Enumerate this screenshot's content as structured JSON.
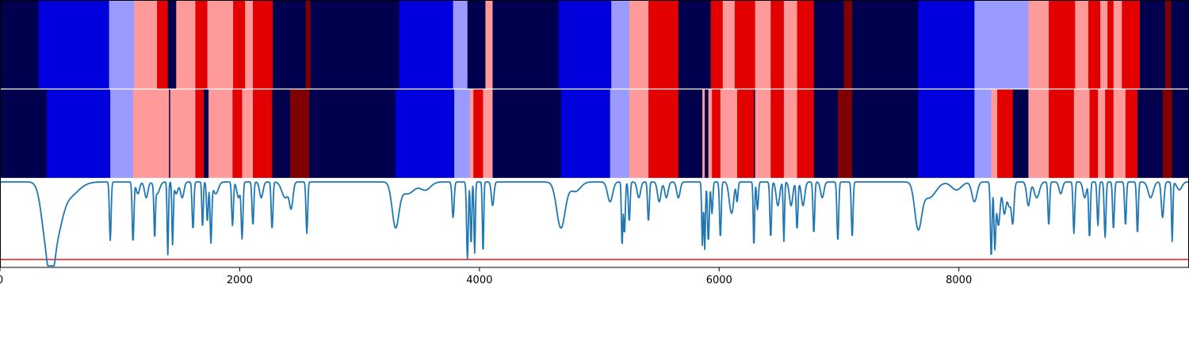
{
  "chart_data": {
    "type": "heatmap",
    "xlim": [
      0,
      9920
    ],
    "x_ticks": [
      0,
      2000,
      4000,
      6000,
      8000
    ],
    "x_tick_labels": [
      "0",
      "2000",
      "4000",
      "6000",
      "8000"
    ],
    "state_colors": {
      "0": "#00004f",
      "1": "#0000dd",
      "2": "#9a9aff",
      "3": "#ff9a9a",
      "4": "#e30000",
      "5": "#7e0000"
    },
    "tracks": [
      {
        "segments": [
          [
            0,
            320,
            0
          ],
          [
            320,
            910,
            1
          ],
          [
            910,
            1120,
            2
          ],
          [
            1120,
            1310,
            3
          ],
          [
            1310,
            1400,
            4
          ],
          [
            1400,
            1470,
            0
          ],
          [
            1470,
            1630,
            3
          ],
          [
            1630,
            1730,
            4
          ],
          [
            1730,
            1945,
            3
          ],
          [
            1945,
            2045,
            4
          ],
          [
            2045,
            2110,
            3
          ],
          [
            2110,
            2275,
            4
          ],
          [
            2275,
            2550,
            0
          ],
          [
            2550,
            2590,
            5
          ],
          [
            2590,
            3330,
            0
          ],
          [
            3330,
            3780,
            1
          ],
          [
            3780,
            3900,
            2
          ],
          [
            3900,
            4050,
            0
          ],
          [
            4050,
            4110,
            3
          ],
          [
            4110,
            4660,
            0
          ],
          [
            4660,
            5100,
            1
          ],
          [
            5100,
            5250,
            2
          ],
          [
            5250,
            5410,
            3
          ],
          [
            5410,
            5660,
            4
          ],
          [
            5660,
            5930,
            0
          ],
          [
            5930,
            6030,
            4
          ],
          [
            6030,
            6130,
            3
          ],
          [
            6130,
            6300,
            4
          ],
          [
            6300,
            6430,
            3
          ],
          [
            6430,
            6540,
            4
          ],
          [
            6540,
            6650,
            3
          ],
          [
            6650,
            6790,
            4
          ],
          [
            6790,
            7040,
            0
          ],
          [
            7040,
            7110,
            5
          ],
          [
            7110,
            7660,
            0
          ],
          [
            7660,
            8130,
            1
          ],
          [
            8130,
            8580,
            2
          ],
          [
            8580,
            8750,
            3
          ],
          [
            8750,
            8970,
            4
          ],
          [
            8970,
            9080,
            3
          ],
          [
            9080,
            9180,
            4
          ],
          [
            9180,
            9240,
            3
          ],
          [
            9240,
            9290,
            4
          ],
          [
            9290,
            9360,
            3
          ],
          [
            9360,
            9510,
            4
          ],
          [
            9510,
            9720,
            0
          ],
          [
            9720,
            9770,
            5
          ],
          [
            9770,
            9920,
            0
          ]
        ]
      },
      {
        "segments": [
          [
            0,
            390,
            0
          ],
          [
            390,
            920,
            1
          ],
          [
            920,
            1110,
            2
          ],
          [
            1110,
            1410,
            3
          ],
          [
            1410,
            1420,
            0
          ],
          [
            1420,
            1470,
            3
          ],
          [
            1470,
            1630,
            3
          ],
          [
            1630,
            1700,
            4
          ],
          [
            1700,
            1740,
            0
          ],
          [
            1740,
            1940,
            3
          ],
          [
            1940,
            2020,
            4
          ],
          [
            2020,
            2110,
            3
          ],
          [
            2110,
            2270,
            4
          ],
          [
            2270,
            2420,
            0
          ],
          [
            2420,
            2580,
            5
          ],
          [
            2580,
            3300,
            0
          ],
          [
            3300,
            3790,
            1
          ],
          [
            3790,
            3920,
            2
          ],
          [
            3920,
            3950,
            3
          ],
          [
            3950,
            4030,
            4
          ],
          [
            4030,
            4110,
            3
          ],
          [
            4110,
            4680,
            0
          ],
          [
            4680,
            5090,
            1
          ],
          [
            5090,
            5250,
            2
          ],
          [
            5250,
            5410,
            3
          ],
          [
            5410,
            5660,
            4
          ],
          [
            5660,
            5860,
            0
          ],
          [
            5860,
            5880,
            3
          ],
          [
            5880,
            5910,
            0
          ],
          [
            5910,
            5940,
            3
          ],
          [
            5940,
            6010,
            4
          ],
          [
            6010,
            6150,
            3
          ],
          [
            6150,
            6290,
            4
          ],
          [
            6290,
            6300,
            0
          ],
          [
            6300,
            6430,
            3
          ],
          [
            6430,
            6540,
            4
          ],
          [
            6540,
            6650,
            3
          ],
          [
            6650,
            6790,
            4
          ],
          [
            6790,
            6990,
            0
          ],
          [
            6990,
            7110,
            5
          ],
          [
            7110,
            7660,
            0
          ],
          [
            7660,
            8130,
            1
          ],
          [
            8130,
            8270,
            2
          ],
          [
            8270,
            8320,
            3
          ],
          [
            8320,
            8450,
            4
          ],
          [
            8450,
            8580,
            0
          ],
          [
            8580,
            8750,
            3
          ],
          [
            8750,
            8960,
            4
          ],
          [
            8960,
            9090,
            3
          ],
          [
            9090,
            9160,
            4
          ],
          [
            9160,
            9220,
            3
          ],
          [
            9220,
            9290,
            4
          ],
          [
            9290,
            9390,
            3
          ],
          [
            9390,
            9490,
            4
          ],
          [
            9490,
            9700,
            0
          ],
          [
            9700,
            9780,
            5
          ],
          [
            9780,
            9920,
            0
          ]
        ]
      }
    ],
    "line_series": {
      "color": "#1f77b4",
      "ylim": [
        -1.1,
        0.02
      ],
      "threshold": -1.0,
      "threshold_color": "#e31a1c",
      "baseline": -0.02,
      "dips": [
        [
          390,
          0.72,
          60
        ],
        [
          430,
          0.5,
          40
        ],
        [
          480,
          0.45,
          60
        ],
        [
          560,
          0.2,
          120
        ],
        [
          920,
          0.74,
          10
        ],
        [
          1110,
          0.76,
          10
        ],
        [
          1150,
          0.15,
          20
        ],
        [
          1220,
          0.2,
          20
        ],
        [
          1290,
          0.62,
          8
        ],
        [
          1310,
          0.15,
          30
        ],
        [
          1400,
          0.92,
          8
        ],
        [
          1440,
          0.78,
          8
        ],
        [
          1470,
          0.15,
          20
        ],
        [
          1520,
          0.2,
          20
        ],
        [
          1610,
          0.6,
          10
        ],
        [
          1690,
          0.58,
          8
        ],
        [
          1730,
          0.5,
          10
        ],
        [
          1760,
          0.75,
          10
        ],
        [
          1800,
          0.15,
          30
        ],
        [
          1940,
          0.55,
          10
        ],
        [
          1990,
          0.2,
          20
        ],
        [
          2020,
          0.7,
          10
        ],
        [
          2110,
          0.55,
          10
        ],
        [
          2180,
          0.2,
          20
        ],
        [
          2270,
          0.6,
          10
        ],
        [
          2380,
          0.2,
          40
        ],
        [
          2430,
          0.3,
          20
        ],
        [
          2560,
          0.65,
          10
        ],
        [
          3300,
          0.55,
          40
        ],
        [
          3400,
          0.15,
          80
        ],
        [
          3550,
          0.1,
          60
        ],
        [
          3780,
          0.45,
          12
        ],
        [
          3900,
          0.97,
          10
        ],
        [
          3930,
          0.8,
          8
        ],
        [
          3960,
          0.9,
          8
        ],
        [
          4030,
          0.9,
          8
        ],
        [
          4110,
          0.3,
          15
        ],
        [
          4680,
          0.58,
          50
        ],
        [
          4800,
          0.12,
          60
        ],
        [
          5090,
          0.25,
          30
        ],
        [
          5190,
          0.8,
          8
        ],
        [
          5210,
          0.65,
          10
        ],
        [
          5250,
          0.5,
          10
        ],
        [
          5330,
          0.2,
          20
        ],
        [
          5410,
          0.5,
          10
        ],
        [
          5500,
          0.25,
          20
        ],
        [
          5560,
          0.2,
          20
        ],
        [
          5660,
          0.2,
          20
        ],
        [
          5860,
          0.8,
          8
        ],
        [
          5880,
          0.85,
          8
        ],
        [
          5910,
          0.75,
          10
        ],
        [
          5940,
          0.4,
          10
        ],
        [
          6010,
          0.7,
          10
        ],
        [
          6090,
          0.2,
          20
        ],
        [
          6110,
          0.3,
          20
        ],
        [
          6150,
          0.25,
          10
        ],
        [
          6290,
          0.82,
          8
        ],
        [
          6320,
          0.35,
          10
        ],
        [
          6430,
          0.7,
          10
        ],
        [
          6490,
          0.3,
          20
        ],
        [
          6540,
          0.75,
          8
        ],
        [
          6600,
          0.3,
          20
        ],
        [
          6650,
          0.6,
          10
        ],
        [
          6700,
          0.3,
          20
        ],
        [
          6790,
          0.65,
          10
        ],
        [
          6860,
          0.2,
          20
        ],
        [
          6990,
          0.75,
          10
        ],
        [
          7110,
          0.7,
          10
        ],
        [
          7660,
          0.55,
          40
        ],
        [
          7750,
          0.2,
          80
        ],
        [
          7980,
          0.1,
          60
        ],
        [
          8130,
          0.25,
          30
        ],
        [
          8270,
          0.95,
          10
        ],
        [
          8300,
          0.8,
          10
        ],
        [
          8330,
          0.55,
          20
        ],
        [
          8380,
          0.4,
          20
        ],
        [
          8420,
          0.3,
          20
        ],
        [
          8450,
          0.5,
          15
        ],
        [
          8580,
          0.3,
          20
        ],
        [
          8650,
          0.2,
          30
        ],
        [
          8750,
          0.55,
          10
        ],
        [
          8850,
          0.15,
          20
        ],
        [
          8960,
          0.65,
          10
        ],
        [
          9050,
          0.2,
          20
        ],
        [
          9090,
          0.7,
          10
        ],
        [
          9160,
          0.55,
          10
        ],
        [
          9220,
          0.7,
          10
        ],
        [
          9290,
          0.6,
          10
        ],
        [
          9390,
          0.55,
          10
        ],
        [
          9490,
          0.65,
          10
        ],
        [
          9600,
          0.2,
          30
        ],
        [
          9700,
          0.45,
          15
        ],
        [
          9780,
          0.75,
          8
        ],
        [
          9840,
          0.1,
          30
        ]
      ]
    }
  }
}
